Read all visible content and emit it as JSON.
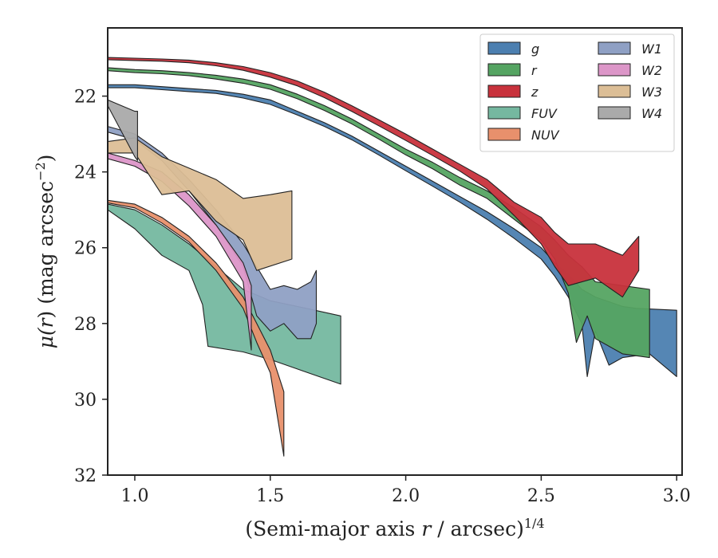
{
  "chart_data": {
    "type": "area",
    "title": "",
    "xlabel": "(Semi-major axis r / arcsec)",
    "xlabel_prefix": "(Semi-major axis ",
    "xlabel_var": "r",
    "xlabel_suffix": " / arcsec)",
    "xlabel_exponent": "1/4",
    "ylabel": "μ(r) (mag arcsec−2)",
    "ylabel_prefix": "μ(",
    "ylabel_var": "r",
    "ylabel_mid": ") (mag arcsec",
    "ylabel_exponent": "−2",
    "ylabel_suffix": ")",
    "xlim": [
      0.9,
      3.02
    ],
    "ylim": [
      32,
      20.2
    ],
    "y_inverted": true,
    "xticks": [
      1.0,
      1.5,
      2.0,
      2.5,
      3.0
    ],
    "xtick_labels": [
      "1.0",
      "1.5",
      "2.0",
      "2.5",
      "3.0"
    ],
    "yticks": [
      22,
      24,
      26,
      28,
      30,
      32
    ],
    "ytick_labels": [
      "22",
      "24",
      "26",
      "28",
      "30",
      "32"
    ],
    "grid": false,
    "legend_position": "top-right",
    "legend_columns": 2,
    "series": [
      {
        "name": "g",
        "color": "#4c7fb0",
        "upper": [
          [
            0.9,
            21.7
          ],
          [
            1.0,
            21.7
          ],
          [
            1.1,
            21.75
          ],
          [
            1.2,
            21.8
          ],
          [
            1.3,
            21.85
          ],
          [
            1.4,
            21.95
          ],
          [
            1.5,
            22.1
          ],
          [
            1.6,
            22.4
          ],
          [
            1.7,
            22.7
          ],
          [
            1.8,
            23.05
          ],
          [
            1.9,
            23.45
          ],
          [
            2.0,
            23.85
          ],
          [
            2.1,
            24.25
          ],
          [
            2.2,
            24.65
          ],
          [
            2.3,
            25.05
          ],
          [
            2.4,
            25.5
          ],
          [
            2.5,
            26.0
          ],
          [
            2.55,
            26.4
          ],
          [
            2.6,
            26.7
          ],
          [
            2.65,
            27.1
          ],
          [
            2.7,
            27.3
          ],
          [
            2.8,
            27.55
          ],
          [
            2.85,
            27.6
          ],
          [
            3.0,
            27.65
          ]
        ],
        "lower": [
          [
            0.9,
            21.78
          ],
          [
            1.0,
            21.78
          ],
          [
            1.1,
            21.83
          ],
          [
            1.2,
            21.88
          ],
          [
            1.3,
            21.93
          ],
          [
            1.4,
            22.05
          ],
          [
            1.5,
            22.22
          ],
          [
            1.6,
            22.5
          ],
          [
            1.7,
            22.8
          ],
          [
            1.8,
            23.15
          ],
          [
            1.9,
            23.55
          ],
          [
            2.0,
            23.97
          ],
          [
            2.1,
            24.38
          ],
          [
            2.2,
            24.8
          ],
          [
            2.3,
            25.25
          ],
          [
            2.4,
            25.75
          ],
          [
            2.5,
            26.3
          ],
          [
            2.55,
            26.75
          ],
          [
            2.6,
            27.3
          ],
          [
            2.65,
            28.0
          ],
          [
            2.67,
            29.4
          ],
          [
            2.7,
            28.2
          ],
          [
            2.75,
            29.1
          ],
          [
            2.8,
            28.9
          ],
          [
            2.9,
            28.8
          ],
          [
            3.0,
            29.4
          ]
        ]
      },
      {
        "name": "r",
        "color": "#55a462",
        "upper": [
          [
            0.9,
            21.25
          ],
          [
            1.0,
            21.3
          ],
          [
            1.1,
            21.33
          ],
          [
            1.2,
            21.38
          ],
          [
            1.3,
            21.45
          ],
          [
            1.4,
            21.55
          ],
          [
            1.5,
            21.7
          ],
          [
            1.6,
            21.95
          ],
          [
            1.7,
            22.25
          ],
          [
            1.8,
            22.6
          ],
          [
            1.9,
            23.0
          ],
          [
            2.0,
            23.4
          ],
          [
            2.1,
            23.75
          ],
          [
            2.2,
            24.15
          ],
          [
            2.3,
            24.5
          ],
          [
            2.4,
            24.95
          ],
          [
            2.5,
            25.45
          ],
          [
            2.55,
            25.8
          ],
          [
            2.6,
            26.2
          ],
          [
            2.65,
            26.5
          ],
          [
            2.7,
            26.9
          ],
          [
            2.8,
            27.0
          ],
          [
            2.9,
            27.1
          ]
        ],
        "lower": [
          [
            0.9,
            21.33
          ],
          [
            1.0,
            21.38
          ],
          [
            1.1,
            21.41
          ],
          [
            1.2,
            21.46
          ],
          [
            1.3,
            21.55
          ],
          [
            1.4,
            21.66
          ],
          [
            1.5,
            21.82
          ],
          [
            1.6,
            22.07
          ],
          [
            1.7,
            22.38
          ],
          [
            1.8,
            22.73
          ],
          [
            1.9,
            23.13
          ],
          [
            2.0,
            23.55
          ],
          [
            2.1,
            23.92
          ],
          [
            2.2,
            24.35
          ],
          [
            2.3,
            24.7
          ],
          [
            2.4,
            25.25
          ],
          [
            2.5,
            25.8
          ],
          [
            2.55,
            26.3
          ],
          [
            2.6,
            27.2
          ],
          [
            2.63,
            28.5
          ],
          [
            2.67,
            27.8
          ],
          [
            2.7,
            28.4
          ],
          [
            2.8,
            28.8
          ],
          [
            2.9,
            28.9
          ]
        ]
      },
      {
        "name": "z",
        "color": "#c8323c",
        "upper": [
          [
            0.9,
            20.98
          ],
          [
            1.0,
            21.0
          ],
          [
            1.1,
            21.02
          ],
          [
            1.2,
            21.05
          ],
          [
            1.3,
            21.12
          ],
          [
            1.4,
            21.22
          ],
          [
            1.5,
            21.38
          ],
          [
            1.6,
            21.6
          ],
          [
            1.7,
            21.9
          ],
          [
            1.8,
            22.25
          ],
          [
            1.9,
            22.62
          ],
          [
            2.0,
            23.0
          ],
          [
            2.1,
            23.4
          ],
          [
            2.2,
            23.8
          ],
          [
            2.3,
            24.2
          ],
          [
            2.4,
            24.8
          ],
          [
            2.5,
            25.2
          ],
          [
            2.55,
            25.6
          ],
          [
            2.6,
            25.9
          ],
          [
            2.7,
            25.9
          ],
          [
            2.8,
            26.2
          ],
          [
            2.86,
            25.7
          ]
        ],
        "lower": [
          [
            0.9,
            21.04
          ],
          [
            1.0,
            21.06
          ],
          [
            1.1,
            21.08
          ],
          [
            1.2,
            21.12
          ],
          [
            1.3,
            21.2
          ],
          [
            1.4,
            21.32
          ],
          [
            1.5,
            21.5
          ],
          [
            1.6,
            21.73
          ],
          [
            1.7,
            22.04
          ],
          [
            1.8,
            22.4
          ],
          [
            1.9,
            22.78
          ],
          [
            2.0,
            23.17
          ],
          [
            2.1,
            23.57
          ],
          [
            2.2,
            23.98
          ],
          [
            2.3,
            24.45
          ],
          [
            2.4,
            25.15
          ],
          [
            2.5,
            25.9
          ],
          [
            2.55,
            26.5
          ],
          [
            2.6,
            27.0
          ],
          [
            2.7,
            26.8
          ],
          [
            2.8,
            27.3
          ],
          [
            2.86,
            26.6
          ]
        ]
      },
      {
        "name": "FUV",
        "color": "#75b8a0",
        "upper": [
          [
            0.9,
            24.85
          ],
          [
            1.0,
            25.0
          ],
          [
            1.1,
            25.4
          ],
          [
            1.2,
            25.9
          ],
          [
            1.3,
            26.5
          ],
          [
            1.4,
            27.1
          ],
          [
            1.5,
            27.4
          ],
          [
            1.6,
            27.55
          ],
          [
            1.76,
            27.8
          ]
        ],
        "lower": [
          [
            0.9,
            25.0
          ],
          [
            1.0,
            25.5
          ],
          [
            1.1,
            26.2
          ],
          [
            1.2,
            26.6
          ],
          [
            1.25,
            27.5
          ],
          [
            1.27,
            28.6
          ],
          [
            1.4,
            28.75
          ],
          [
            1.5,
            28.95
          ],
          [
            1.6,
            29.2
          ],
          [
            1.76,
            29.6
          ]
        ]
      },
      {
        "name": "NUV",
        "color": "#e8906c",
        "upper": [
          [
            0.9,
            24.75
          ],
          [
            1.0,
            24.85
          ],
          [
            1.1,
            25.2
          ],
          [
            1.2,
            25.7
          ],
          [
            1.3,
            26.4
          ],
          [
            1.4,
            27.3
          ],
          [
            1.45,
            28.0
          ],
          [
            1.5,
            28.7
          ],
          [
            1.55,
            29.8
          ]
        ],
        "lower": [
          [
            0.9,
            24.82
          ],
          [
            1.0,
            24.95
          ],
          [
            1.1,
            25.35
          ],
          [
            1.2,
            25.85
          ],
          [
            1.3,
            26.6
          ],
          [
            1.4,
            27.6
          ],
          [
            1.45,
            28.5
          ],
          [
            1.5,
            29.3
          ],
          [
            1.55,
            31.5
          ]
        ]
      },
      {
        "name": "W1",
        "color": "#8fa0c4",
        "upper": [
          [
            0.9,
            22.8
          ],
          [
            1.0,
            23.0
          ],
          [
            1.1,
            23.5
          ],
          [
            1.2,
            24.2
          ],
          [
            1.3,
            25.0
          ],
          [
            1.4,
            25.9
          ],
          [
            1.45,
            26.5
          ],
          [
            1.5,
            27.1
          ],
          [
            1.55,
            27.0
          ],
          [
            1.6,
            27.1
          ],
          [
            1.65,
            26.9
          ],
          [
            1.67,
            26.6
          ]
        ],
        "lower": [
          [
            0.9,
            22.95
          ],
          [
            1.0,
            23.15
          ],
          [
            1.1,
            23.7
          ],
          [
            1.2,
            24.5
          ],
          [
            1.3,
            25.4
          ],
          [
            1.4,
            26.5
          ],
          [
            1.45,
            27.8
          ],
          [
            1.5,
            28.2
          ],
          [
            1.55,
            28.0
          ],
          [
            1.6,
            28.4
          ],
          [
            1.65,
            28.4
          ],
          [
            1.67,
            28.0
          ]
        ]
      },
      {
        "name": "W2",
        "color": "#dc96c8",
        "upper": [
          [
            0.9,
            23.5
          ],
          [
            1.0,
            23.7
          ],
          [
            1.1,
            24.0
          ],
          [
            1.2,
            24.6
          ],
          [
            1.3,
            25.4
          ],
          [
            1.4,
            26.4
          ],
          [
            1.43,
            27.0
          ]
        ],
        "lower": [
          [
            0.9,
            23.65
          ],
          [
            1.0,
            23.85
          ],
          [
            1.1,
            24.25
          ],
          [
            1.2,
            24.9
          ],
          [
            1.3,
            25.7
          ],
          [
            1.4,
            26.9
          ],
          [
            1.43,
            28.7
          ]
        ]
      },
      {
        "name": "W3",
        "color": "#dcbe96",
        "upper": [
          [
            0.9,
            23.2
          ],
          [
            1.0,
            23.1
          ],
          [
            1.1,
            23.6
          ],
          [
            1.2,
            23.9
          ],
          [
            1.3,
            24.2
          ],
          [
            1.4,
            24.7
          ],
          [
            1.5,
            24.6
          ],
          [
            1.58,
            24.5
          ]
        ],
        "lower": [
          [
            0.9,
            23.5
          ],
          [
            1.0,
            23.5
          ],
          [
            1.1,
            24.6
          ],
          [
            1.2,
            24.5
          ],
          [
            1.3,
            25.3
          ],
          [
            1.4,
            25.8
          ],
          [
            1.45,
            26.6
          ],
          [
            1.58,
            26.3
          ]
        ]
      },
      {
        "name": "W4",
        "color": "#aaaaaa",
        "upper": [
          [
            0.9,
            22.1
          ],
          [
            1.0,
            22.4
          ],
          [
            1.01,
            22.4
          ]
        ],
        "lower": [
          [
            0.9,
            22.25
          ],
          [
            1.0,
            23.6
          ],
          [
            1.01,
            23.7
          ]
        ]
      }
    ]
  }
}
